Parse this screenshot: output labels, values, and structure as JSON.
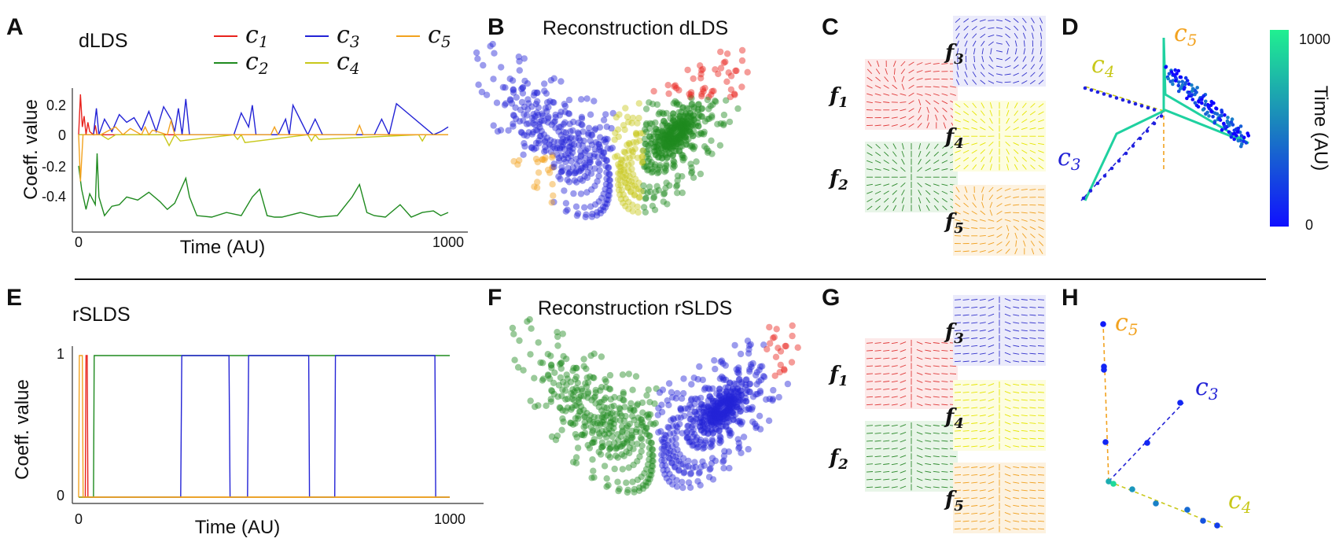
{
  "panels": {
    "A": {
      "letter": "A",
      "title": "dLDS",
      "ylabel": "Coeff. value",
      "xlabel": "Time (AU)",
      "xticks": [
        "0",
        "1000"
      ],
      "yticks": [
        "0.2",
        "0",
        "-0.2",
        "-0.4"
      ]
    },
    "B": {
      "letter": "B",
      "title": "Reconstruction dLDS"
    },
    "C": {
      "letter": "C"
    },
    "D": {
      "letter": "D",
      "colorbar_label": "Time (AU)",
      "colorbar_ticks": [
        "1000",
        "0"
      ]
    },
    "E": {
      "letter": "E",
      "title": "rSLDS",
      "ylabel": "Coeff. value",
      "xlabel": "Time (AU)",
      "xticks": [
        "0",
        "1000"
      ],
      "yticks": [
        "1",
        "0"
      ]
    },
    "F": {
      "letter": "F",
      "title": "Reconstruction rSLDS"
    },
    "G": {
      "letter": "G"
    },
    "H": {
      "letter": "H"
    }
  },
  "legend": [
    {
      "label": "c",
      "sub": "1",
      "color": "#e8231d"
    },
    {
      "label": "c",
      "sub": "2",
      "color": "#1f8a1f"
    },
    {
      "label": "c",
      "sub": "3",
      "color": "#2323d6"
    },
    {
      "label": "c",
      "sub": "4",
      "color": "#c8c81a"
    },
    {
      "label": "c",
      "sub": "5",
      "color": "#f2a21f"
    }
  ],
  "flow_fields": [
    {
      "label": "f",
      "sub": "1",
      "color": "#e03a3a",
      "bg": "#fde9e9"
    },
    {
      "label": "f",
      "sub": "2",
      "color": "#2d8a2d",
      "bg": "#e8f5e8"
    },
    {
      "label": "f",
      "sub": "3",
      "color": "#3333cc",
      "bg": "#ebebfb"
    },
    {
      "label": "f",
      "sub": "4",
      "color": "#e6e600",
      "bg": "#fdfde0"
    },
    {
      "label": "f",
      "sub": "5",
      "color": "#f0a020",
      "bg": "#fdf2e0"
    }
  ],
  "axis_labels_D": [
    {
      "label": "c",
      "sub": "5",
      "color": "#f2a21f"
    },
    {
      "label": "c",
      "sub": "4",
      "color": "#c8c81a"
    },
    {
      "label": "c",
      "sub": "3",
      "color": "#2323d6"
    }
  ],
  "axis_labels_H": [
    {
      "label": "c",
      "sub": "5",
      "color": "#f2a21f"
    },
    {
      "label": "c",
      "sub": "3",
      "color": "#2323d6"
    },
    {
      "label": "c",
      "sub": "4",
      "color": "#c8c81a"
    }
  ],
  "chart_data": [
    {
      "type": "line",
      "panel": "A",
      "title": "dLDS",
      "xlabel": "Time (AU)",
      "ylabel": "Coeff. value",
      "xlim": [
        0,
        1000
      ],
      "ylim": [
        -0.55,
        0.3
      ],
      "series": [
        {
          "name": "c1",
          "color": "#e8231d",
          "x": [
            0,
            5,
            10,
            15,
            20,
            25,
            30,
            40,
            45,
            50,
            1000
          ],
          "y": [
            0,
            0.26,
            0.05,
            0.12,
            0.0,
            0.08,
            0.02,
            0,
            0.06,
            0,
            0
          ]
        },
        {
          "name": "c2",
          "color": "#1f8a1f",
          "x": [
            0,
            8,
            20,
            30,
            45,
            50,
            55,
            70,
            90,
            110,
            130,
            160,
            190,
            220,
            240,
            260,
            290,
            300,
            320,
            360,
            400,
            440,
            470,
            490,
            510,
            530,
            550,
            600,
            650,
            700,
            740,
            760,
            780,
            800,
            830,
            870,
            900,
            930,
            960,
            980,
            1000
          ],
          "y": [
            -0.2,
            -0.35,
            -0.48,
            -0.38,
            -0.45,
            -0.12,
            -0.4,
            -0.52,
            -0.46,
            -0.45,
            -0.4,
            -0.42,
            -0.37,
            -0.43,
            -0.48,
            -0.44,
            -0.28,
            -0.4,
            -0.52,
            -0.53,
            -0.5,
            -0.52,
            -0.4,
            -0.35,
            -0.52,
            -0.53,
            -0.53,
            -0.5,
            -0.53,
            -0.52,
            -0.4,
            -0.32,
            -0.5,
            -0.52,
            -0.53,
            -0.45,
            -0.53,
            -0.5,
            -0.49,
            -0.52,
            -0.5
          ]
        },
        {
          "name": "c3",
          "color": "#2323d6",
          "x": [
            0,
            40,
            48,
            55,
            70,
            90,
            110,
            130,
            150,
            170,
            190,
            210,
            230,
            250,
            260,
            270,
            280,
            290,
            300,
            420,
            440,
            460,
            470,
            480,
            540,
            560,
            570,
            580,
            620,
            640,
            660,
            700,
            800,
            820,
            840,
            860,
            960,
            980,
            1000
          ],
          "y": [
            0,
            0,
            0.17,
            0,
            0.1,
            0.02,
            0.13,
            0.08,
            0.11,
            0.03,
            0.15,
            0.02,
            0.18,
            0.1,
            0.02,
            0.17,
            0,
            0.23,
            0,
            0,
            0.14,
            0.05,
            0.19,
            0,
            0,
            0.1,
            0,
            0.19,
            0,
            0.1,
            0,
            0,
            0,
            0.1,
            0,
            0.2,
            0,
            0.02,
            0.05
          ]
        },
        {
          "name": "c4",
          "color": "#c8c81a",
          "x": [
            0,
            60,
            80,
            100,
            230,
            245,
            260,
            275,
            420,
            430,
            440,
            450,
            620,
            630,
            640,
            650,
            920,
            930,
            940,
            1000
          ],
          "y": [
            0,
            0,
            -0.03,
            0,
            0,
            -0.07,
            0,
            -0.04,
            0,
            -0.03,
            0,
            -0.05,
            0,
            -0.04,
            0,
            -0.03,
            0,
            -0.04,
            0,
            0
          ]
        },
        {
          "name": "c5",
          "color": "#f2a21f",
          "x": [
            0,
            5,
            12,
            60,
            100,
            120,
            140,
            170,
            180,
            190,
            200,
            240,
            250,
            260,
            520,
            530,
            540,
            700,
            750,
            760,
            770,
            1000
          ],
          "y": [
            0,
            -0.3,
            0,
            0,
            0.05,
            0,
            0.04,
            0,
            0.05,
            0,
            0.03,
            0,
            0.09,
            0,
            0,
            0.05,
            0,
            0,
            0,
            0.06,
            0,
            0
          ]
        }
      ]
    },
    {
      "type": "line",
      "panel": "E",
      "title": "rSLDS",
      "xlabel": "Time (AU)",
      "ylabel": "Coeff. value",
      "xlim": [
        0,
        1000
      ],
      "ylim": [
        0,
        1
      ],
      "series": [
        {
          "name": "c1",
          "color": "#e8231d",
          "x": [
            0,
            18,
            20,
            23,
            25,
            1000
          ],
          "y": [
            0,
            0,
            1,
            1,
            0,
            0
          ]
        },
        {
          "name": "c2",
          "color": "#1f8a1f",
          "x": [
            0,
            40,
            42,
            360,
            362,
            478,
            480,
            1000
          ],
          "y": [
            0,
            0,
            1,
            1,
            1,
            1,
            1,
            1
          ]
        },
        {
          "name": "c3",
          "color": "#2323d6",
          "x": [
            0,
            275,
            278,
            405,
            408,
            455,
            458,
            620,
            622,
            690,
            692,
            960,
            962,
            1000
          ],
          "y": [
            0,
            0,
            1,
            1,
            0,
            0,
            1,
            1,
            0,
            0,
            1,
            1,
            0,
            0
          ]
        },
        {
          "name": "c4",
          "color": "#c8c81a",
          "x": [
            0,
            1000
          ],
          "y": [
            0,
            0
          ]
        },
        {
          "name": "c5",
          "color": "#f2a21f",
          "x": [
            0,
            2,
            5,
            10,
            12,
            30,
            32,
            1000
          ],
          "y": [
            0,
            1,
            1,
            1,
            0,
            0,
            0,
            0
          ]
        }
      ]
    }
  ]
}
